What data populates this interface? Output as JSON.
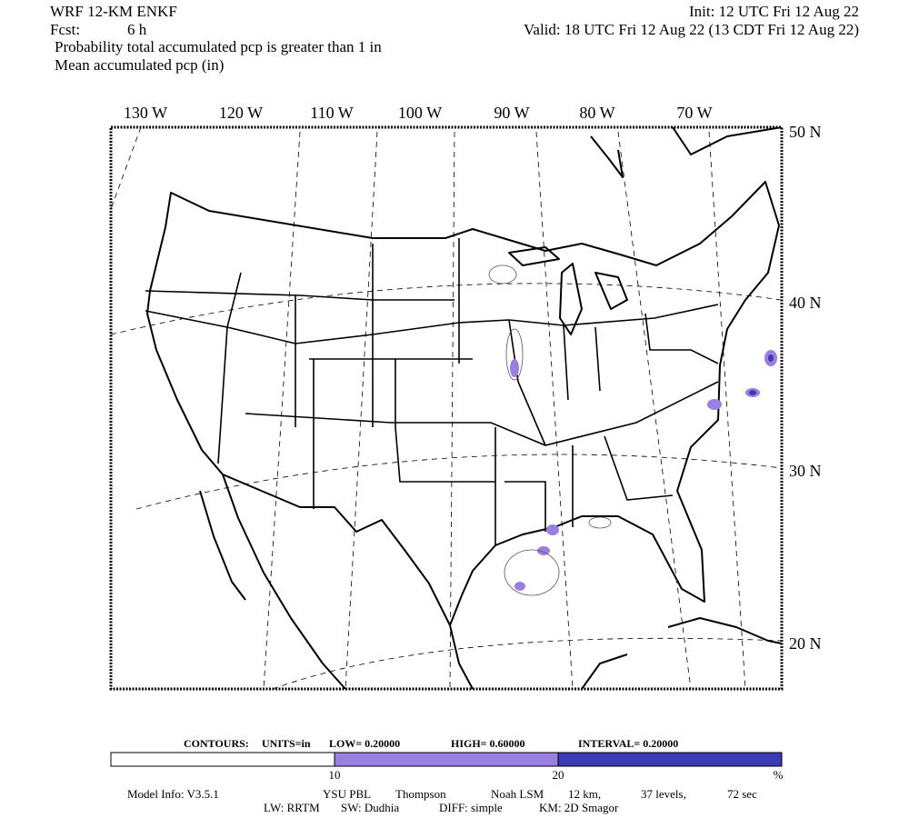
{
  "header": {
    "model": "WRF 12-KM ENKF",
    "init": "Init: 12 UTC Fri 12 Aug 22",
    "fcst_label": "Fcst:",
    "fcst_value": "6 h",
    "valid": "Valid: 18 UTC Fri 12 Aug 22 (13 CDT Fri 12 Aug 22)",
    "field1": "Probability total accumulated pcp is greater than 1 in",
    "field2": "Mean accumulated pcp (in)"
  },
  "map": {
    "lon_labels": [
      "130 W",
      "120 W",
      "110 W",
      "100 W",
      "90 W",
      "80 W",
      "70 W"
    ],
    "lat_labels": [
      "50 N",
      "40 N",
      "30 N",
      "20 N"
    ]
  },
  "contours": {
    "label": "CONTOURS:",
    "units": "UNITS=in",
    "low": "LOW= 0.20000",
    "high": "HIGH= 0.60000",
    "interval": "INTERVAL= 0.20000"
  },
  "colorbar": {
    "colors": [
      "#ffffff",
      "#9a7fe0",
      "#3b3bb3"
    ],
    "labels": [
      "10",
      "20",
      "%"
    ]
  },
  "model_info": {
    "line1": [
      "Model Info: V3.5.1",
      "YSU PBL",
      "Thompson",
      "Noah LSM",
      "12 km,",
      "37 levels,",
      "72 sec"
    ],
    "line2": [
      "LW: RRTM",
      "SW: Dudhia",
      "DIFF: simple",
      "KM: 2D Smagor"
    ]
  }
}
